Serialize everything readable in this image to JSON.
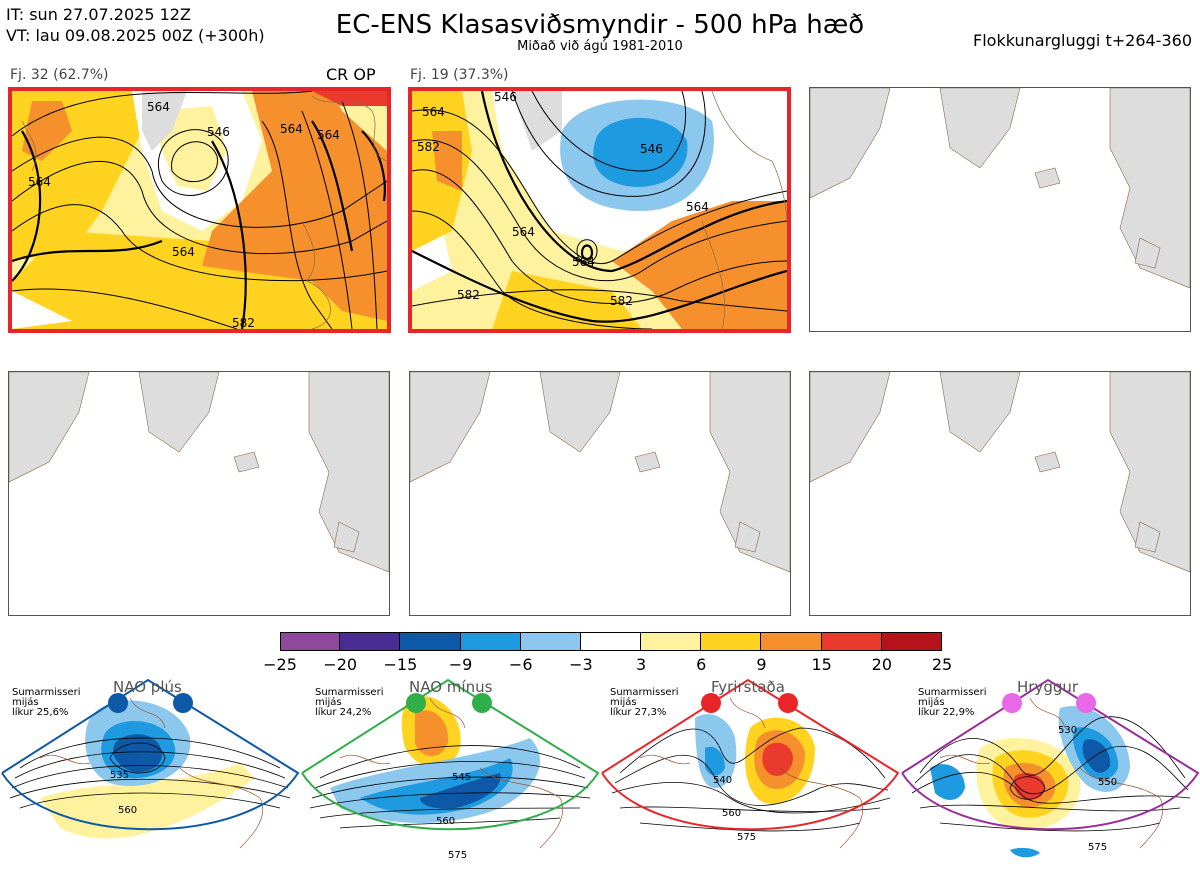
{
  "header": {
    "it_line": "IT: sun 27.07.2025 12Z",
    "vt_line": "VT: lau 09.08.2025 00Z  (+300h)",
    "title": "EC-ENS Klasasviðsmyndir - 500 hPa hæð",
    "subtitle": "Miðað við ágú 1981-2010",
    "window": "Flokkunargluggi t+264-360"
  },
  "clusters": [
    {
      "label": "Fj. 32 (62.7%)",
      "tag": "CR OP",
      "selected": true,
      "contours": [
        "564",
        "546",
        "564",
        "564",
        "582",
        "564",
        "564"
      ]
    },
    {
      "label": "Fj. 19 (37.3%)",
      "tag": "",
      "selected": true,
      "contours": [
        "564",
        "582",
        "546",
        "564",
        "546",
        "564",
        "564",
        "582",
        "582"
      ]
    }
  ],
  "colorbar": {
    "colors": [
      "#8d4a9a",
      "#4a2d93",
      "#0d59a8",
      "#1e9ae0",
      "#8cc8ee",
      "#ffffff",
      "#fff29e",
      "#ffd31f",
      "#f5902d",
      "#ea3a2e",
      "#b31319"
    ],
    "ticks": [
      "−25",
      "−20",
      "−15",
      "−9",
      "−6",
      "−3",
      "3",
      "6",
      "9",
      "15",
      "20",
      "25"
    ]
  },
  "regimes": [
    {
      "name": "NAO plús",
      "season": "Sumarmisseri",
      "mean": "mijás",
      "prob": "líkur 25,6%",
      "color": "#0d59a8",
      "labels": [
        "535",
        "560"
      ]
    },
    {
      "name": "NAO mínus",
      "season": "Sumarmisseri",
      "mean": "mijás",
      "prob": "líkur 24,2%",
      "color": "#2fae4a",
      "labels": [
        "545",
        "560",
        "575"
      ]
    },
    {
      "name": "Fyrirstaða",
      "season": "Sumarmisseri",
      "mean": "mijás",
      "prob": "líkur 27,3%",
      "color": "#e8262a",
      "labels": [
        "540",
        "560",
        "575"
      ]
    },
    {
      "name": "Hryggur",
      "season": "Sumarmisseri",
      "mean": "mijás",
      "prob": "líkur 22,9%",
      "color": "#e868e8",
      "labels": [
        "530",
        "550",
        "575"
      ]
    }
  ]
}
